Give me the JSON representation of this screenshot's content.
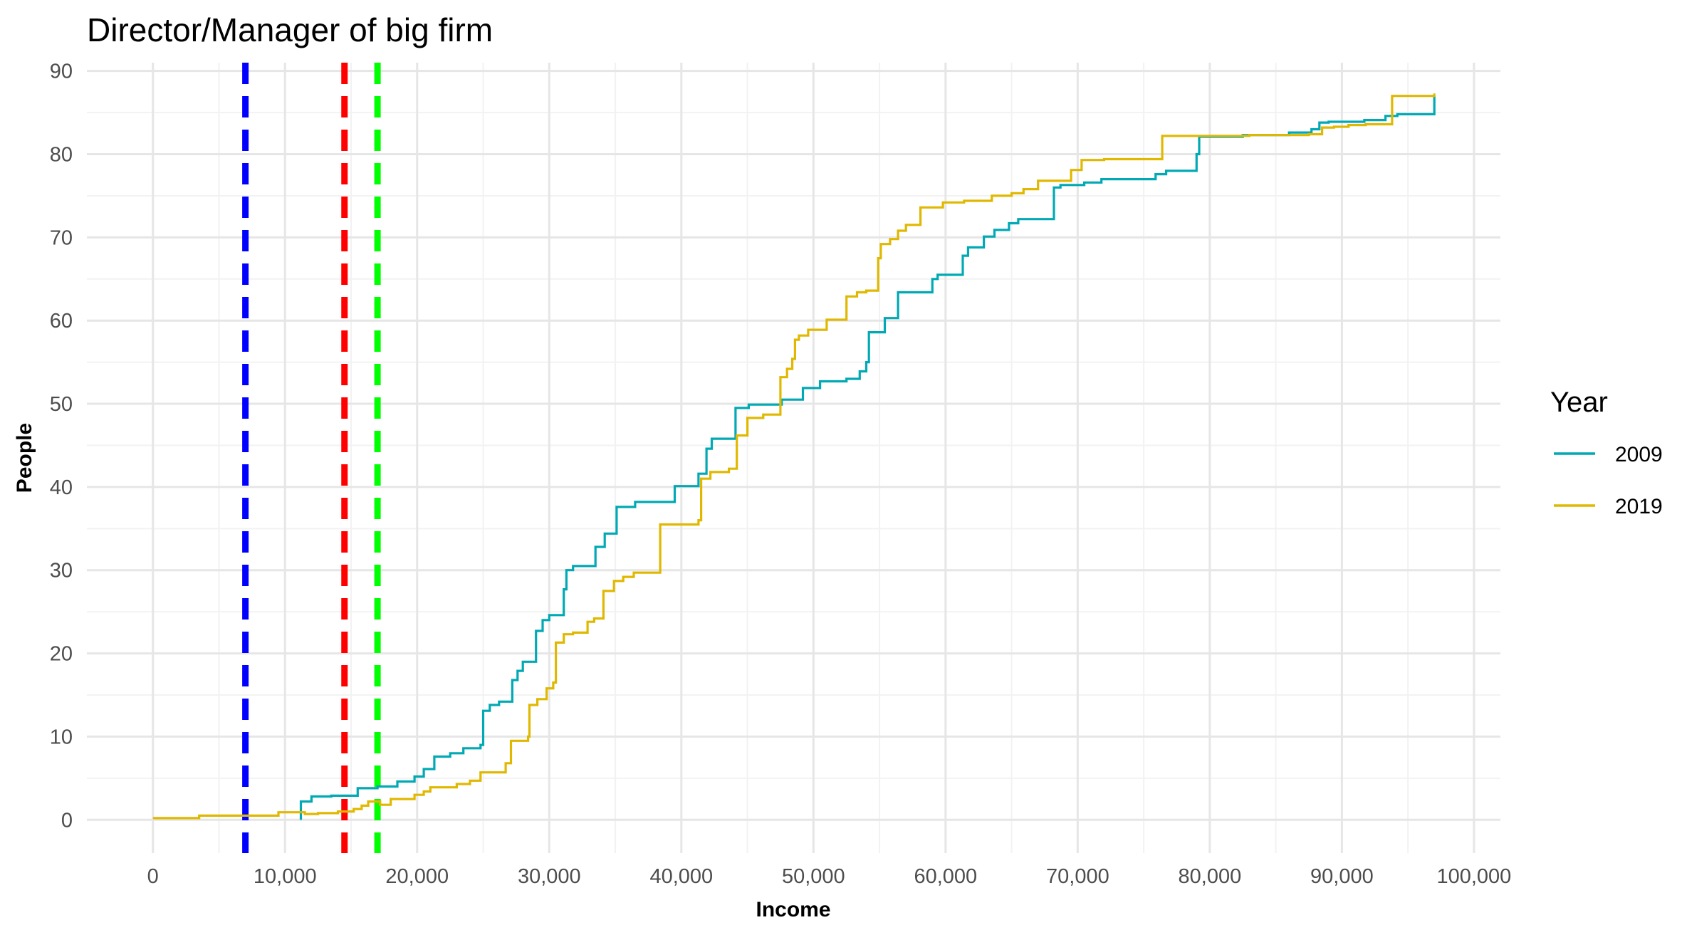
{
  "chart_data": {
    "type": "line",
    "title": "Director/Manager of big firm",
    "xlabel": "Income",
    "ylabel": "People",
    "xlim": [
      -5000,
      102000
    ],
    "ylim": [
      -4,
      91
    ],
    "x_ticks": [
      0,
      10000,
      20000,
      30000,
      40000,
      50000,
      60000,
      70000,
      80000,
      90000,
      100000
    ],
    "x_tick_labels": [
      "0",
      "10,000",
      "20,000",
      "30,000",
      "40,000",
      "50,000",
      "60,000",
      "70,000",
      "80,000",
      "90,000",
      "100,000"
    ],
    "y_ticks": [
      0,
      10,
      20,
      30,
      40,
      50,
      60,
      70,
      80,
      90
    ],
    "y_tick_labels": [
      "0",
      "10",
      "20",
      "30",
      "40",
      "50",
      "60",
      "70",
      "80",
      "90"
    ],
    "grid": true,
    "legend": {
      "title": "Year",
      "position": "right"
    },
    "vlines": [
      {
        "x": 7000,
        "color": "#0000ff"
      },
      {
        "x": 14500,
        "color": "#ff0000"
      },
      {
        "x": 17000,
        "color": "#00ff00"
      }
    ],
    "series": [
      {
        "name": "2009",
        "color": "#00a9b4",
        "step": true,
        "points": [
          [
            11200,
            0
          ],
          [
            11200,
            2.2
          ],
          [
            12000,
            2.8
          ],
          [
            13500,
            2.9
          ],
          [
            15500,
            3.8
          ],
          [
            17000,
            4.0
          ],
          [
            18500,
            4.6
          ],
          [
            19800,
            5.2
          ],
          [
            20500,
            6.1
          ],
          [
            21300,
            7.6
          ],
          [
            22500,
            8.0
          ],
          [
            23500,
            8.6
          ],
          [
            24800,
            9.0
          ],
          [
            25000,
            13.1
          ],
          [
            25500,
            13.8
          ],
          [
            26200,
            14.2
          ],
          [
            27200,
            16.8
          ],
          [
            27600,
            17.9
          ],
          [
            28000,
            19.0
          ],
          [
            29000,
            22.7
          ],
          [
            29500,
            24.0
          ],
          [
            30000,
            24.6
          ],
          [
            31100,
            27.7
          ],
          [
            31300,
            30.0
          ],
          [
            31800,
            30.5
          ],
          [
            33500,
            32.8
          ],
          [
            34200,
            34.4
          ],
          [
            35100,
            37.6
          ],
          [
            36500,
            38.2
          ],
          [
            39500,
            40.1
          ],
          [
            41300,
            41.6
          ],
          [
            41900,
            44.6
          ],
          [
            42300,
            45.8
          ],
          [
            44100,
            49.5
          ],
          [
            45100,
            49.9
          ],
          [
            47600,
            50.5
          ],
          [
            49200,
            51.9
          ],
          [
            50500,
            52.7
          ],
          [
            52500,
            53.0
          ],
          [
            53500,
            53.9
          ],
          [
            54000,
            55.0
          ],
          [
            54200,
            58.6
          ],
          [
            55400,
            60.3
          ],
          [
            56400,
            63.4
          ],
          [
            59000,
            65.0
          ],
          [
            59400,
            65.5
          ],
          [
            61300,
            67.8
          ],
          [
            61700,
            68.8
          ],
          [
            62900,
            70.1
          ],
          [
            63700,
            70.9
          ],
          [
            64800,
            71.7
          ],
          [
            65500,
            72.2
          ],
          [
            68200,
            76.0
          ],
          [
            68700,
            76.3
          ],
          [
            70500,
            76.6
          ],
          [
            71800,
            77.0
          ],
          [
            75900,
            77.6
          ],
          [
            76700,
            78.0
          ],
          [
            79000,
            80.0
          ],
          [
            79200,
            82.1
          ],
          [
            82500,
            82.3
          ],
          [
            86000,
            82.6
          ],
          [
            87700,
            83.0
          ],
          [
            88300,
            83.8
          ],
          [
            89000,
            83.9
          ],
          [
            91700,
            84.1
          ],
          [
            93300,
            84.6
          ],
          [
            94200,
            84.8
          ],
          [
            97000,
            84.8
          ],
          [
            97000,
            87.0
          ]
        ]
      },
      {
        "name": "2019",
        "color": "#e0b800",
        "step": true,
        "points": [
          [
            0,
            0.2
          ],
          [
            3500,
            0.5
          ],
          [
            9500,
            0.9
          ],
          [
            11500,
            0.7
          ],
          [
            12500,
            0.8
          ],
          [
            14000,
            1.0
          ],
          [
            15200,
            1.3
          ],
          [
            15800,
            1.7
          ],
          [
            16300,
            2.2
          ],
          [
            17200,
            1.8
          ],
          [
            18000,
            2.5
          ],
          [
            19800,
            3.0
          ],
          [
            20500,
            3.4
          ],
          [
            21000,
            3.9
          ],
          [
            23000,
            4.3
          ],
          [
            24000,
            4.7
          ],
          [
            24800,
            5.7
          ],
          [
            26700,
            6.8
          ],
          [
            27100,
            9.5
          ],
          [
            28400,
            10.0
          ],
          [
            28500,
            13.8
          ],
          [
            29100,
            14.5
          ],
          [
            29800,
            15.8
          ],
          [
            30300,
            16.5
          ],
          [
            30500,
            21.3
          ],
          [
            31100,
            22.3
          ],
          [
            31800,
            22.5
          ],
          [
            32900,
            23.8
          ],
          [
            33400,
            24.2
          ],
          [
            34100,
            27.5
          ],
          [
            34900,
            28.7
          ],
          [
            35600,
            29.2
          ],
          [
            36400,
            29.7
          ],
          [
            38400,
            35.5
          ],
          [
            41300,
            36.0
          ],
          [
            41500,
            41.0
          ],
          [
            42200,
            41.8
          ],
          [
            43600,
            42.2
          ],
          [
            44200,
            46.2
          ],
          [
            45000,
            48.3
          ],
          [
            46200,
            48.7
          ],
          [
            47500,
            53.2
          ],
          [
            48000,
            54.2
          ],
          [
            48400,
            55.4
          ],
          [
            48600,
            57.7
          ],
          [
            48900,
            58.2
          ],
          [
            49600,
            58.9
          ],
          [
            51000,
            60.1
          ],
          [
            52500,
            62.9
          ],
          [
            53300,
            63.4
          ],
          [
            54000,
            63.6
          ],
          [
            54900,
            67.5
          ],
          [
            55100,
            69.2
          ],
          [
            55800,
            69.8
          ],
          [
            56400,
            70.8
          ],
          [
            57000,
            71.5
          ],
          [
            58100,
            73.6
          ],
          [
            59800,
            74.2
          ],
          [
            61400,
            74.4
          ],
          [
            63500,
            75.0
          ],
          [
            65000,
            75.3
          ],
          [
            65900,
            75.8
          ],
          [
            67000,
            76.8
          ],
          [
            69500,
            78.1
          ],
          [
            70300,
            79.3
          ],
          [
            72000,
            79.4
          ],
          [
            76400,
            82.2
          ],
          [
            80500,
            82.2
          ],
          [
            83000,
            82.3
          ],
          [
            87500,
            82.4
          ],
          [
            88500,
            83.2
          ],
          [
            89400,
            83.3
          ],
          [
            90500,
            83.5
          ],
          [
            91800,
            83.6
          ],
          [
            93800,
            87.0
          ],
          [
            96800,
            87.0
          ],
          [
            97000,
            87.3
          ]
        ]
      }
    ]
  }
}
